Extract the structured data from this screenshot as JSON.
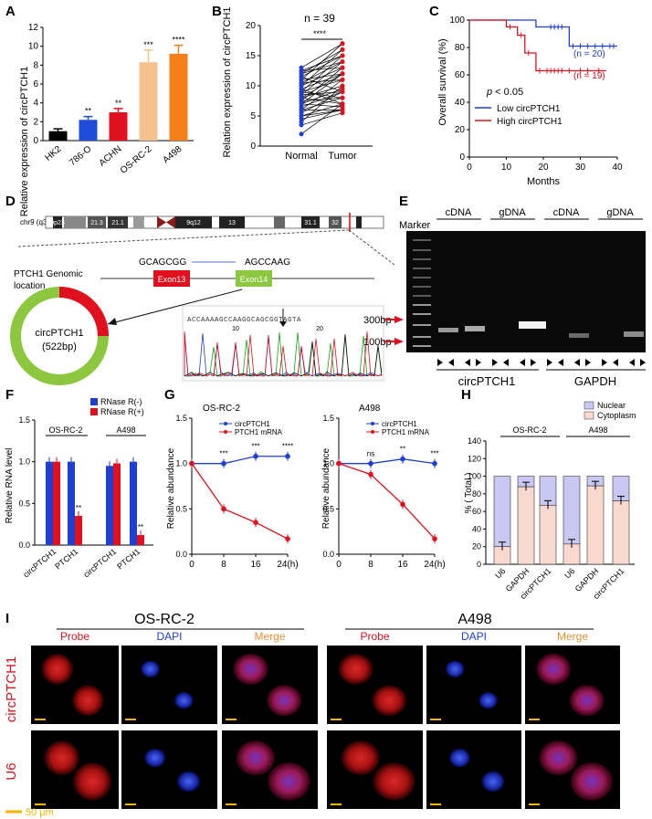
{
  "panels": {
    "A": {
      "letter": "A",
      "ylabel": "Relative expression of circPTCH1",
      "categories": [
        "HK2",
        "786-O",
        "ACHN",
        "OS-RC-2",
        "A498"
      ],
      "values": [
        1.0,
        2.2,
        3.0,
        8.3,
        9.2
      ],
      "errors": [
        0.25,
        0.35,
        0.4,
        1.3,
        0.9
      ],
      "sig": [
        "",
        "**",
        "**",
        "***",
        "****"
      ],
      "colors": [
        "#000000",
        "#1e4bd8",
        "#e0101e",
        "#f5c28e",
        "#f77f1a"
      ],
      "ylim": [
        0,
        12
      ],
      "yticks": [
        0,
        2,
        4,
        6,
        8,
        10,
        12
      ]
    },
    "B": {
      "letter": "B",
      "title": "n = 39",
      "ylabel": "Relation expression of circPTCH1",
      "xticks": [
        "Normal",
        "Tumor"
      ],
      "sig": "****",
      "ylim": [
        0,
        20
      ],
      "yticks": [
        0,
        5,
        10,
        15,
        20
      ]
    },
    "C": {
      "letter": "C",
      "ylabel": "Overall survival (%)",
      "xlabel": "Months",
      "xticks": [
        0,
        10,
        20,
        30,
        40
      ],
      "yticks": [
        0,
        20,
        40,
        60,
        80,
        100
      ],
      "pval_prefix": "p",
      "pval_suffix": " < 0.05",
      "low_label": "Low circPTCH1",
      "high_label": "High circPTCH1",
      "n_low": "(n = 20)",
      "n_high": "(n = 19)",
      "low_color": "#1e3fd0",
      "high_color": "#e0101e"
    },
    "D": {
      "letter": "D",
      "chr": "chr9 (q33.3)",
      "bands": [
        "9p23",
        "21.3",
        "21.1",
        "12",
        "9q12",
        "13",
        "31.1",
        "32"
      ],
      "genomic": "PTCH1 Genomic",
      "location": "location",
      "seq_left": "GCAGCGG",
      "seq_right": "AGCCAAG",
      "exon13": "Exon13",
      "exon14": "Exon14",
      "circ_name": "circPTCH1",
      "circ_len": "(522bp)",
      "seq_read": "ACCAAAAGCCAAGGCAGCGGTAGTA",
      "seq_ticks": [
        "10",
        "20"
      ]
    },
    "E": {
      "letter": "E",
      "marker": "Marker",
      "groups": [
        "cDNA",
        "gDNA",
        "cDNA",
        "gDNA"
      ],
      "bp300": "300bp",
      "bp100": "100bp",
      "gene1": "circPTCH1",
      "gene2": "GAPDH"
    },
    "F": {
      "letter": "F",
      "ylabel": "Relative RNA level",
      "legend": [
        "RNase R(-)",
        "RNase R(+)"
      ],
      "colors": [
        "#1e3fd0",
        "#e0101e"
      ],
      "groups": [
        "OS-RC-2",
        "A498"
      ],
      "xticks": [
        "circPTCH1",
        "PTCH1",
        "circPTCH1",
        "PTCH1"
      ],
      "minus": [
        1.0,
        1.0,
        0.95,
        1.0
      ],
      "plus": [
        1.0,
        0.35,
        0.98,
        0.12
      ],
      "sig": [
        "",
        "**",
        "",
        "**"
      ],
      "ylim": [
        0,
        1.5
      ],
      "yticks": [
        "0.0",
        "0.5",
        "1.0",
        "1.5"
      ]
    },
    "G": {
      "letter": "G",
      "ylabel": "Relative abundance",
      "legend": [
        "circPTCH1",
        "PTCH1 mRNA"
      ],
      "xticks": [
        "0",
        "8",
        "16",
        "24(h)"
      ],
      "yticks": [
        "0.0",
        "0.5",
        "1.0",
        "1.5"
      ],
      "left": {
        "title": "OS-RC-2",
        "circ": [
          1.0,
          1.0,
          1.08,
          1.08
        ],
        "mrna": [
          1.0,
          0.5,
          0.35,
          0.17
        ],
        "sig": [
          "",
          "***",
          "***",
          "****"
        ]
      },
      "right": {
        "title": "A498",
        "circ": [
          1.0,
          1.0,
          1.05,
          1.0
        ],
        "mrna": [
          1.0,
          0.88,
          0.55,
          0.17
        ],
        "sig": [
          "",
          "ns",
          "**",
          "***"
        ]
      }
    },
    "H": {
      "letter": "H",
      "ylabel": "% ( Total )",
      "legend": [
        "Nuclear",
        "Cytoplasm"
      ],
      "groups": [
        "OS-RC-2",
        "A498"
      ],
      "xticks": [
        "U6",
        "GAPDH",
        "circPTCH1",
        "U6",
        "GAPDH",
        "circPTCH1"
      ],
      "cyto": [
        20,
        88,
        67,
        23,
        89,
        72
      ],
      "yticks": [
        0,
        20,
        40,
        60,
        80,
        100,
        120,
        140
      ]
    },
    "I": {
      "letter": "I",
      "cell1": "OS-RC-2",
      "cell2": "A498",
      "cols": [
        "Probe",
        "DAPI",
        "Merge",
        "Probe",
        "DAPI",
        "Merge"
      ],
      "rows": [
        "circPTCH1",
        "U6"
      ],
      "scale": "50 µm"
    }
  },
  "chart_data": [
    {
      "type": "bar",
      "panel": "A",
      "categories": [
        "HK2",
        "786-O",
        "ACHN",
        "OS-RC-2",
        "A498"
      ],
      "values": [
        1.0,
        2.2,
        3.0,
        8.3,
        9.2
      ],
      "ylabel": "Relative expression of circPTCH1",
      "ylim": [
        0,
        12
      ]
    },
    {
      "type": "bar",
      "panel": "F",
      "categories": [
        "circPTCH1",
        "PTCH1",
        "circPTCH1",
        "PTCH1"
      ],
      "series": [
        {
          "name": "RNase R(-)",
          "values": [
            1.0,
            1.0,
            0.95,
            1.0
          ]
        },
        {
          "name": "RNase R(+)",
          "values": [
            1.0,
            0.35,
            0.98,
            0.12
          ]
        }
      ],
      "ylabel": "Relative RNA level",
      "ylim": [
        0,
        1.5
      ]
    },
    {
      "type": "line",
      "panel": "G-left",
      "title": "OS-RC-2",
      "x": [
        0,
        8,
        16,
        24
      ],
      "series": [
        {
          "name": "circPTCH1",
          "values": [
            1.0,
            1.0,
            1.08,
            1.08
          ]
        },
        {
          "name": "PTCH1 mRNA",
          "values": [
            1.0,
            0.5,
            0.35,
            0.17
          ]
        }
      ],
      "ylabel": "Relative abundance",
      "ylim": [
        0,
        1.5
      ]
    },
    {
      "type": "line",
      "panel": "G-right",
      "title": "A498",
      "x": [
        0,
        8,
        16,
        24
      ],
      "series": [
        {
          "name": "circPTCH1",
          "values": [
            1.0,
            1.0,
            1.05,
            1.0
          ]
        },
        {
          "name": "PTCH1 mRNA",
          "values": [
            1.0,
            0.88,
            0.55,
            0.17
          ]
        }
      ],
      "ylabel": "Relative abundance",
      "ylim": [
        0,
        1.5
      ]
    },
    {
      "type": "bar",
      "panel": "H",
      "categories": [
        "U6",
        "GAPDH",
        "circPTCH1",
        "U6",
        "GAPDH",
        "circPTCH1"
      ],
      "series": [
        {
          "name": "Cytoplasm",
          "values": [
            20,
            88,
            67,
            23,
            89,
            72
          ]
        },
        {
          "name": "Nuclear",
          "values": [
            80,
            12,
            33,
            77,
            11,
            28
          ]
        }
      ],
      "ylabel": "% ( Total )",
      "ylim": [
        0,
        140
      ]
    }
  ]
}
